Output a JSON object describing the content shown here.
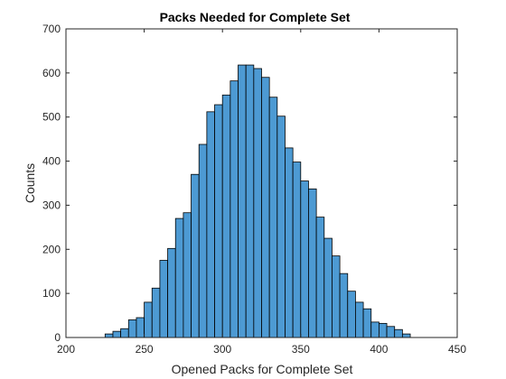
{
  "chart_data": {
    "type": "bar",
    "title": "Packs Needed for Complete Set",
    "xlabel": "Opened Packs for Complete Set",
    "ylabel": "Counts",
    "xlim": [
      200,
      450
    ],
    "ylim": [
      0,
      700
    ],
    "xticks": [
      200,
      250,
      300,
      350,
      400,
      450
    ],
    "yticks": [
      0,
      100,
      200,
      300,
      400,
      500,
      600,
      700
    ],
    "bin_width": 5,
    "bins_start": [
      225,
      230,
      235,
      240,
      245,
      250,
      255,
      260,
      265,
      270,
      275,
      280,
      285,
      290,
      295,
      300,
      305,
      310,
      315,
      320,
      325,
      330,
      335,
      340,
      345,
      350,
      355,
      360,
      365,
      370,
      375,
      380,
      385,
      390,
      395,
      400,
      405,
      410,
      415
    ],
    "values": [
      8,
      14,
      20,
      40,
      45,
      80,
      112,
      175,
      202,
      270,
      283,
      370,
      438,
      512,
      528,
      550,
      582,
      618,
      618,
      610,
      590,
      545,
      502,
      430,
      398,
      355,
      337,
      273,
      225,
      185,
      145,
      105,
      80,
      65,
      35,
      32,
      25,
      18,
      8
    ],
    "colors": {
      "bar_fill": "#4d9ad3",
      "bar_edge": "#000000",
      "axis": "#262626"
    },
    "grid": false,
    "legend": "none"
  }
}
